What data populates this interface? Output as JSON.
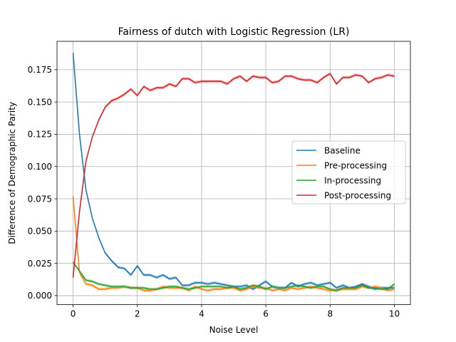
{
  "chart_data": {
    "type": "line",
    "title": "Fairness of dutch with Logistic Regression (LR)",
    "xlabel": "Noise Level",
    "ylabel": "Difference of Demographic Parity",
    "xlim": [
      -0.5,
      10.5
    ],
    "ylim": [
      -0.007,
      0.197
    ],
    "xticks": [
      0,
      2,
      4,
      6,
      8,
      10
    ],
    "xtick_labels": [
      "0",
      "2",
      "4",
      "6",
      "8",
      "10"
    ],
    "yticks": [
      0.0,
      0.025,
      0.05,
      0.075,
      0.1,
      0.125,
      0.15,
      0.175
    ],
    "ytick_labels": [
      "0.000",
      "0.025",
      "0.050",
      "0.075",
      "0.100",
      "0.125",
      "0.150",
      "0.175"
    ],
    "grid": true,
    "legend_position": "center-right",
    "x": [
      0,
      0.2,
      0.4,
      0.6,
      0.8,
      1.0,
      1.2,
      1.4,
      1.6,
      1.8,
      2.0,
      2.2,
      2.4,
      2.6,
      2.8,
      3.0,
      3.2,
      3.4,
      3.6,
      3.8,
      4.0,
      4.2,
      4.4,
      4.6,
      4.8,
      5.0,
      5.2,
      5.4,
      5.6,
      5.8,
      6.0,
      6.2,
      6.4,
      6.6,
      6.8,
      7.0,
      7.2,
      7.4,
      7.6,
      7.8,
      8.0,
      8.2,
      8.4,
      8.6,
      8.8,
      9.0,
      9.2,
      9.4,
      9.6,
      9.8,
      10.0
    ],
    "series": [
      {
        "name": "Baseline",
        "color": "#1f77b4",
        "values": [
          0.188,
          0.125,
          0.082,
          0.06,
          0.045,
          0.033,
          0.027,
          0.022,
          0.021,
          0.016,
          0.023,
          0.016,
          0.016,
          0.014,
          0.016,
          0.013,
          0.014,
          0.008,
          0.008,
          0.01,
          0.01,
          0.009,
          0.01,
          0.009,
          0.008,
          0.007,
          0.007,
          0.008,
          0.005,
          0.008,
          0.011,
          0.007,
          0.006,
          0.006,
          0.01,
          0.007,
          0.009,
          0.01,
          0.008,
          0.009,
          0.01,
          0.006,
          0.008,
          0.006,
          0.007,
          0.009,
          0.007,
          0.005,
          0.006,
          0.006,
          0.006
        ]
      },
      {
        "name": "Pre-processing",
        "color": "#ff7f0e",
        "values": [
          0.077,
          0.018,
          0.009,
          0.008,
          0.005,
          0.005,
          0.006,
          0.006,
          0.007,
          0.006,
          0.006,
          0.004,
          0.004,
          0.005,
          0.007,
          0.006,
          0.006,
          0.006,
          0.004,
          0.007,
          0.005,
          0.004,
          0.005,
          0.005,
          0.006,
          0.006,
          0.004,
          0.005,
          0.007,
          0.006,
          0.006,
          0.004,
          0.005,
          0.004,
          0.006,
          0.005,
          0.006,
          0.007,
          0.006,
          0.005,
          0.004,
          0.004,
          0.005,
          0.005,
          0.005,
          0.007,
          0.006,
          0.007,
          0.006,
          0.004,
          0.005
        ]
      },
      {
        "name": "In-processing",
        "color": "#2ca02c",
        "values": [
          0.026,
          0.019,
          0.012,
          0.011,
          0.009,
          0.008,
          0.007,
          0.007,
          0.007,
          0.006,
          0.006,
          0.006,
          0.005,
          0.005,
          0.006,
          0.007,
          0.007,
          0.006,
          0.005,
          0.006,
          0.007,
          0.007,
          0.007,
          0.007,
          0.006,
          0.007,
          0.005,
          0.006,
          0.008,
          0.007,
          0.005,
          0.007,
          0.006,
          0.006,
          0.007,
          0.008,
          0.007,
          0.006,
          0.007,
          0.007,
          0.005,
          0.004,
          0.006,
          0.006,
          0.006,
          0.008,
          0.006,
          0.006,
          0.005,
          0.005,
          0.009
        ]
      },
      {
        "name": "Post-processing",
        "color": "#d62728",
        "values": [
          0.014,
          0.065,
          0.104,
          0.123,
          0.136,
          0.146,
          0.151,
          0.153,
          0.156,
          0.16,
          0.155,
          0.162,
          0.159,
          0.161,
          0.161,
          0.164,
          0.162,
          0.168,
          0.168,
          0.165,
          0.166,
          0.166,
          0.166,
          0.166,
          0.164,
          0.168,
          0.17,
          0.166,
          0.17,
          0.169,
          0.169,
          0.165,
          0.166,
          0.17,
          0.17,
          0.168,
          0.167,
          0.167,
          0.165,
          0.169,
          0.172,
          0.164,
          0.169,
          0.169,
          0.171,
          0.17,
          0.165,
          0.168,
          0.169,
          0.171,
          0.17
        ]
      }
    ]
  }
}
